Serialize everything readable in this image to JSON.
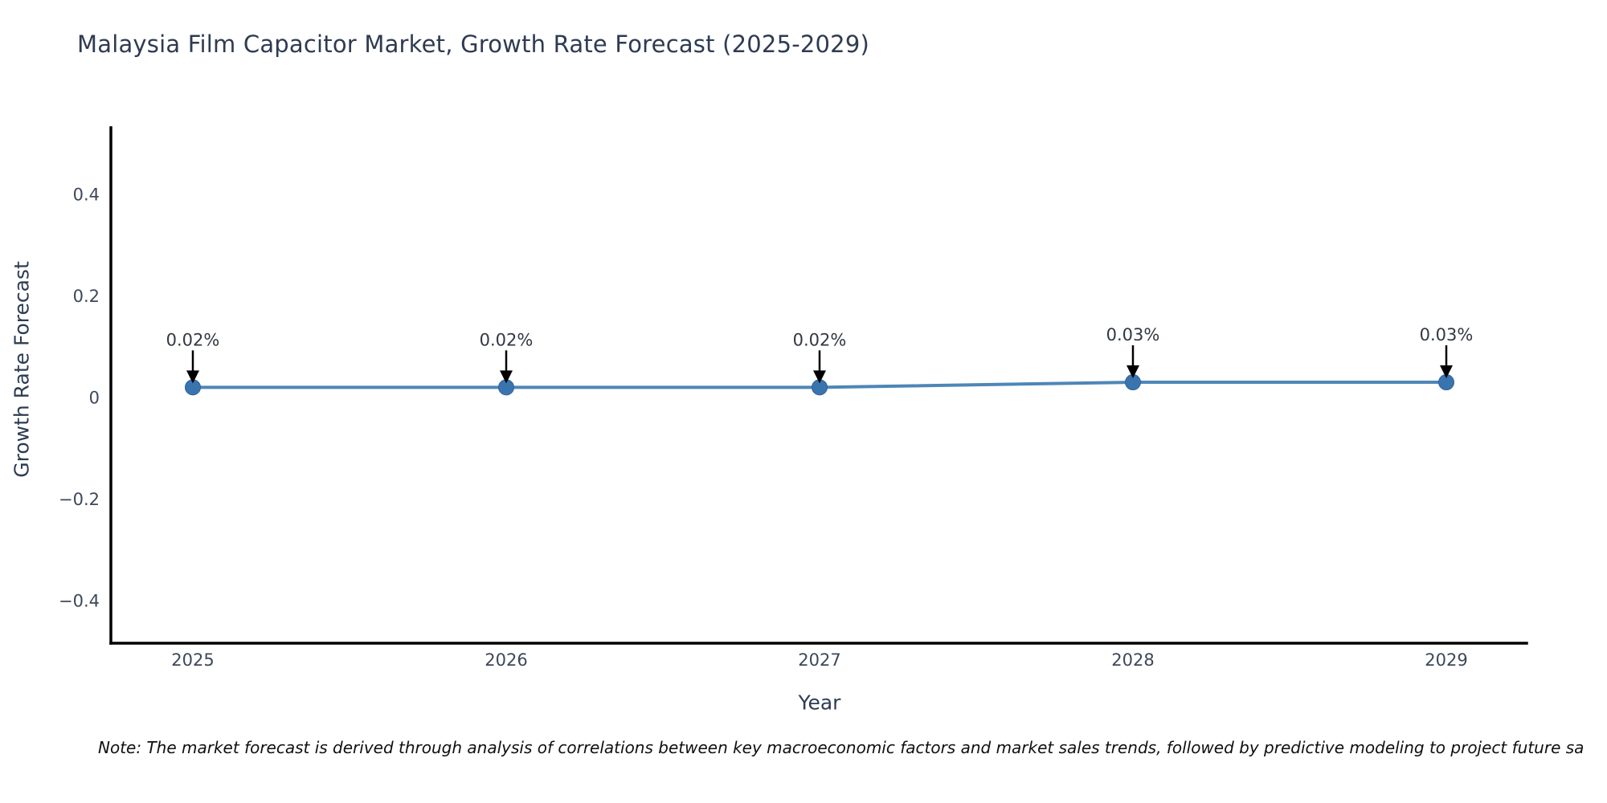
{
  "title": "Malaysia Film Capacitor Market, Growth Rate Forecast (2025-2029)",
  "note": "Note: The market forecast is derived through analysis of correlations between key macroeconomic factors and market sales trends, followed by predictive modeling to project future sa",
  "chart_data": {
    "type": "line",
    "title": "Malaysia Film Capacitor Market, Growth Rate Forecast (2025-2029)",
    "xlabel": "Year",
    "ylabel": "Growth Rate Forecast",
    "x": [
      2025,
      2026,
      2027,
      2028,
      2029
    ],
    "xtick_labels": [
      "2025",
      "2026",
      "2027",
      "2028",
      "2029"
    ],
    "series": [
      {
        "name": "Growth Rate Forecast",
        "values": [
          0.02,
          0.02,
          0.02,
          0.03,
          0.03
        ]
      }
    ],
    "point_labels": [
      "0.02%",
      "0.02%",
      "0.02%",
      "0.03%",
      "0.03%"
    ],
    "yticks": [
      0.4,
      0.2,
      0,
      -0.2,
      -0.4
    ],
    "ytick_labels": [
      "0.4",
      "0.2",
      "0",
      "−0.2",
      "−0.4"
    ],
    "ylim": [
      -0.48,
      0.53
    ],
    "grid": false,
    "legend": "none",
    "colors": {
      "line": "#4e86b7",
      "marker": "#3a74ae",
      "marker_edge": "#2f639c",
      "arrow": "#000000",
      "axis_line": "#000000",
      "title_text": "#2e3b52",
      "tick_text": "#3d4859"
    }
  }
}
